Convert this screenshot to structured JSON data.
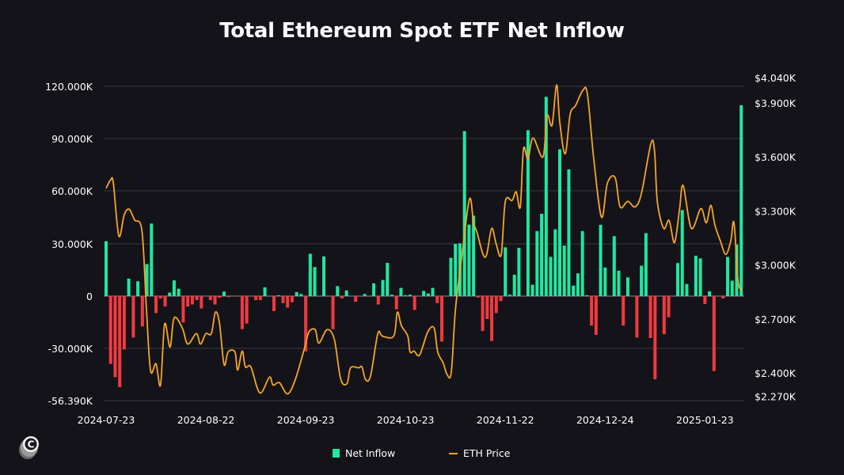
{
  "chart_data": {
    "type": "bar+line",
    "title": "Total Ethereum Spot ETF Net Inflow",
    "x_tick_labels": [
      "2024-07-23",
      "2024-08-22",
      "2024-09-23",
      "2024-10-23",
      "2024-11-22",
      "2024-12-24",
      "2025-01-23"
    ],
    "left_axis": {
      "tick_labels": [
        "120.000K",
        "90.000K",
        "60.000K",
        "30.000K",
        "0",
        "-30.000K",
        "-56.390K"
      ],
      "ticks": [
        120,
        90,
        60,
        30,
        0,
        -30,
        -56.39
      ],
      "unit": "K"
    },
    "right_axis": {
      "tick_labels": [
        "$4.040K",
        "$3.900K",
        "$3.600K",
        "$3.300K",
        "$3.000K",
        "$2.700K",
        "$2.400K",
        "$2.270K"
      ],
      "ticks": [
        4040,
        3900,
        3600,
        3300,
        3000,
        2700,
        2400,
        2270
      ]
    },
    "grid": true,
    "legend_position": "bottom",
    "series": [
      {
        "name": "Net Inflow",
        "type": "bar",
        "color_positive": "#1de9a0",
        "color_negative": "#f23a3f",
        "unit": "K",
        "values": [
          31.4,
          -38.8,
          -46.4,
          -52.1,
          -30.5,
          10,
          -23.7,
          8.5,
          -17.4,
          18.3,
          41.5,
          -9.7,
          -1.4,
          -6,
          2,
          9,
          4.2,
          -15.1,
          -6,
          -4.8,
          -2.3,
          -7.1,
          0,
          -2.3,
          -4.8,
          -1,
          2.6,
          -0.6,
          0,
          0,
          -18.9,
          -15.7,
          0,
          -2.3,
          -2.3,
          5,
          0,
          -8.6,
          0.5,
          -4,
          -6.6,
          -3.6,
          2.3,
          1.2,
          -31.6,
          24.2,
          16.6,
          0,
          22.7,
          0,
          -18.9,
          5.7,
          -1.4,
          3.2,
          0,
          -3.3,
          0,
          1.2,
          0,
          7.3,
          -4.8,
          9.2,
          19,
          0.8,
          -7.6,
          4.7,
          0.5,
          0.8,
          -7.9,
          0,
          3,
          1.5,
          4.7,
          -4,
          -26,
          0,
          21.9,
          29.9,
          30.2,
          94.4,
          40.9,
          46,
          -0.8,
          -20,
          -13.1,
          -25.7,
          -9.7,
          -2.9,
          27.9,
          0.8,
          12.2,
          27.6,
          0,
          94.9,
          6.5,
          37.2,
          47.1,
          114,
          22.4,
          38.2,
          84,
          28.9,
          72.5,
          6,
          13,
          37.2,
          0.5,
          -16.9,
          -22.2,
          40.8,
          16.3,
          0,
          34.3,
          14.5,
          -16.9,
          10.7,
          0,
          -23.7,
          17.4,
          36,
          -24,
          -47.6,
          0,
          -21.8,
          -12.1,
          0,
          18.9,
          49.2,
          6.9,
          0,
          23.1,
          21.6,
          -4.5,
          2.7,
          -42.9,
          0,
          -1.4,
          22.4,
          8.8,
          29.5,
          109.2
        ]
      },
      {
        "name": "ETH Price",
        "type": "line",
        "color": "#f5a623",
        "points": [
          [
            0,
            3425
          ],
          [
            1,
            3472
          ],
          [
            1.6,
            3454
          ],
          [
            2.8,
            3161
          ],
          [
            4,
            3278
          ],
          [
            5.1,
            3309
          ],
          [
            6.3,
            3249
          ],
          [
            7.9,
            3190
          ],
          [
            8.9,
            2750
          ],
          [
            9.8,
            2412
          ],
          [
            11,
            2450
          ],
          [
            12,
            2332
          ],
          [
            12.9,
            2671
          ],
          [
            14.1,
            2543
          ],
          [
            15,
            2706
          ],
          [
            16.8,
            2649
          ],
          [
            18,
            2560
          ],
          [
            19.9,
            2618
          ],
          [
            20.8,
            2560
          ],
          [
            22,
            2618
          ],
          [
            23.2,
            2618
          ],
          [
            24.1,
            2737
          ],
          [
            25,
            2675
          ],
          [
            26,
            2446
          ],
          [
            26.9,
            2516
          ],
          [
            28.4,
            2516
          ],
          [
            29,
            2415
          ],
          [
            30,
            2521
          ],
          [
            30.7,
            2433
          ],
          [
            31.9,
            2433
          ],
          [
            33.9,
            2288
          ],
          [
            36,
            2376
          ],
          [
            36.8,
            2332
          ],
          [
            38.2,
            2345
          ],
          [
            40,
            2283
          ],
          [
            41.7,
            2362
          ],
          [
            43.8,
            2543
          ],
          [
            44.7,
            2627
          ],
          [
            46.1,
            2640
          ],
          [
            46.9,
            2565
          ],
          [
            48.7,
            2640
          ],
          [
            50.3,
            2587
          ],
          [
            51.7,
            2367
          ],
          [
            53.1,
            2340
          ],
          [
            53.9,
            2428
          ],
          [
            55.7,
            2428
          ],
          [
            56.4,
            2433
          ],
          [
            57.2,
            2362
          ],
          [
            58.3,
            2384
          ],
          [
            59.9,
            2618
          ],
          [
            60.9,
            2604
          ],
          [
            63.4,
            2604
          ],
          [
            64.2,
            2737
          ],
          [
            65.1,
            2662
          ],
          [
            66.5,
            2604
          ],
          [
            67,
            2516
          ],
          [
            67.9,
            2521
          ],
          [
            69.1,
            2499
          ],
          [
            70.9,
            2627
          ],
          [
            72.3,
            2649
          ],
          [
            73.1,
            2516
          ],
          [
            74.3,
            2455
          ],
          [
            75.2,
            2389
          ],
          [
            76.1,
            2406
          ],
          [
            77,
            2750
          ],
          [
            78.4,
            3045
          ],
          [
            80.1,
            3366
          ],
          [
            81,
            3234
          ],
          [
            81.8,
            3177
          ],
          [
            83.1,
            3058
          ],
          [
            83.9,
            3058
          ],
          [
            85,
            3203
          ],
          [
            86,
            3115
          ],
          [
            87.1,
            3058
          ],
          [
            88,
            3353
          ],
          [
            89.5,
            3358
          ],
          [
            90.4,
            3406
          ],
          [
            91.3,
            3322
          ],
          [
            92,
            3644
          ],
          [
            93,
            3587
          ],
          [
            94.1,
            3705
          ],
          [
            96.3,
            3600
          ],
          [
            97.2,
            3829
          ],
          [
            98.3,
            3776
          ],
          [
            99.3,
            4000
          ],
          [
            100,
            3793
          ],
          [
            101.2,
            3617
          ],
          [
            102.3,
            3837
          ],
          [
            103.5,
            3886
          ],
          [
            105.1,
            3970
          ],
          [
            106.1,
            3948
          ],
          [
            107.5,
            3587
          ],
          [
            109.2,
            3265
          ],
          [
            110.5,
            3454
          ],
          [
            112.2,
            3485
          ],
          [
            113.3,
            3322
          ],
          [
            115,
            3353
          ],
          [
            116.6,
            3322
          ],
          [
            118,
            3397
          ],
          [
            120.1,
            3675
          ],
          [
            120.9,
            3631
          ],
          [
            121.5,
            3353
          ],
          [
            122.9,
            3203
          ],
          [
            124.1,
            3247
          ],
          [
            125.3,
            3124
          ],
          [
            126.4,
            3309
          ],
          [
            127.2,
            3441
          ],
          [
            129,
            3203
          ],
          [
            131.1,
            3313
          ],
          [
            132.3,
            3234
          ],
          [
            133.3,
            3331
          ],
          [
            134.2,
            3221
          ],
          [
            135.4,
            3133
          ],
          [
            136.6,
            3058
          ],
          [
            137.7,
            3133
          ],
          [
            138.4,
            3234
          ],
          [
            139.3,
            2913
          ],
          [
            140.1,
            2860
          ]
        ]
      }
    ]
  },
  "legend": {
    "net_inflow": "Net Inflow",
    "eth_price": "ETH Price"
  },
  "logo_text": "C"
}
